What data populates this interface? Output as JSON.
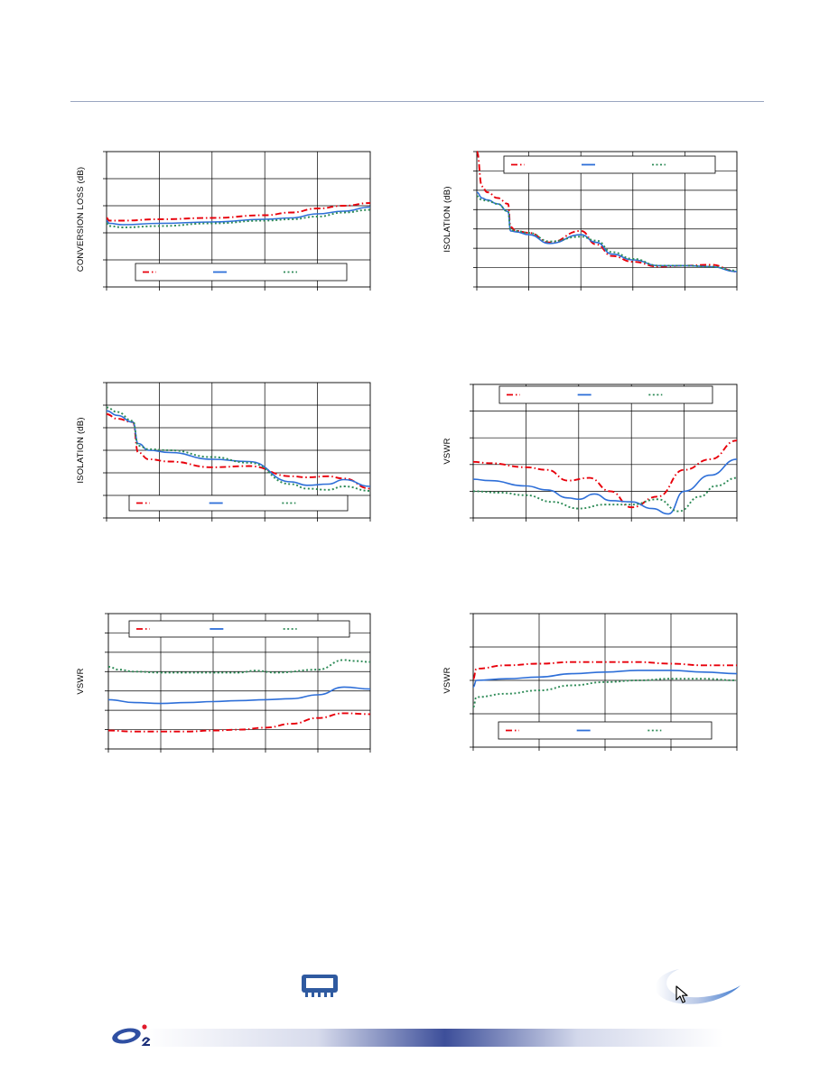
{
  "colors": {
    "series_red": "#e8000b",
    "series_blue": "#2e6fd8",
    "series_green": "#2e8b57",
    "grid": "#000000",
    "rule": "#9aa6c0",
    "footer_band": "#3d4f9a"
  },
  "icons": {
    "logo": "brand-logo-icon",
    "package": "chip-package-icon",
    "swoosh": "swoosh-logo-icon",
    "cursor": "mouse-pointer-icon"
  },
  "chart_data": [
    {
      "type": "line",
      "ylabel": "CONVERSION LOSS (dB)",
      "legend_placement": "bottom",
      "grid": true,
      "xlim": [
        0,
        5
      ],
      "ylim": [
        0,
        5
      ],
      "series": [
        {
          "color": "#e8000b",
          "dash": "dash-dot",
          "x": [
            0,
            0.05,
            0.3,
            1,
            2,
            3,
            3.5,
            4,
            4.5,
            5
          ],
          "y": [
            2.55,
            2.45,
            2.45,
            2.5,
            2.55,
            2.65,
            2.75,
            2.9,
            3.0,
            3.1
          ]
        },
        {
          "color": "#2e6fd8",
          "dash": "solid",
          "x": [
            0,
            0.05,
            0.3,
            1,
            2,
            3,
            3.5,
            4,
            4.5,
            5
          ],
          "y": [
            2.45,
            2.35,
            2.3,
            2.35,
            2.4,
            2.5,
            2.55,
            2.7,
            2.8,
            2.95
          ]
        },
        {
          "color": "#2e8b57",
          "dash": "dot",
          "x": [
            0,
            0.05,
            0.3,
            1,
            2,
            3,
            3.5,
            4,
            4.5,
            5
          ],
          "y": [
            2.35,
            2.25,
            2.2,
            2.25,
            2.35,
            2.45,
            2.5,
            2.6,
            2.75,
            2.85
          ]
        }
      ]
    },
    {
      "type": "line",
      "ylabel": "ISOLATION (dB)",
      "legend_placement": "top",
      "grid": true,
      "xlim": [
        0,
        5
      ],
      "ylim": [
        0,
        7
      ],
      "series": [
        {
          "color": "#e8000b",
          "dash": "dash-dot",
          "x": [
            0,
            0.1,
            0.2,
            0.4,
            0.6,
            0.65,
            0.75,
            1,
            1.4,
            2,
            2.3,
            2.6,
            3,
            3.5,
            4,
            4.5,
            5
          ],
          "y": [
            7.0,
            5.2,
            4.9,
            4.6,
            4.3,
            3.1,
            2.9,
            2.8,
            2.3,
            2.9,
            2.2,
            1.6,
            1.3,
            1.05,
            1.1,
            1.15,
            0.8
          ]
        },
        {
          "color": "#2e6fd8",
          "dash": "solid",
          "x": [
            0,
            0.1,
            0.2,
            0.4,
            0.6,
            0.65,
            0.75,
            1,
            1.4,
            2,
            2.3,
            2.6,
            3,
            3.5,
            4,
            4.5,
            5
          ],
          "y": [
            4.9,
            4.6,
            4.5,
            4.3,
            3.9,
            2.9,
            2.85,
            2.7,
            2.25,
            2.7,
            2.3,
            1.7,
            1.4,
            1.1,
            1.1,
            1.05,
            0.8
          ]
        },
        {
          "color": "#2e8b57",
          "dash": "dot",
          "x": [
            0,
            0.1,
            0.2,
            0.4,
            0.6,
            0.65,
            0.75,
            1,
            1.4,
            2,
            2.3,
            2.6,
            3,
            3.5,
            4,
            4.5,
            5
          ],
          "y": [
            4.7,
            4.5,
            4.45,
            4.3,
            3.9,
            2.95,
            2.9,
            2.8,
            2.35,
            2.6,
            2.4,
            1.8,
            1.45,
            1.1,
            1.1,
            1.05,
            0.85
          ]
        }
      ]
    },
    {
      "type": "line",
      "ylabel": "ISOLATION (dB)",
      "legend_placement": "bottom",
      "grid": true,
      "xlim": [
        0,
        5
      ],
      "ylim": [
        0,
        6
      ],
      "series": [
        {
          "color": "#e8000b",
          "dash": "dash-dot",
          "x": [
            0,
            0.2,
            0.5,
            0.6,
            0.8,
            1.2,
            2,
            2.7,
            3.5,
            3.8,
            4.2,
            4.5,
            5
          ],
          "y": [
            4.6,
            4.4,
            4.25,
            2.9,
            2.6,
            2.5,
            2.25,
            2.3,
            1.85,
            1.8,
            1.85,
            1.75,
            1.3
          ]
        },
        {
          "color": "#2e6fd8",
          "dash": "solid",
          "x": [
            0,
            0.2,
            0.5,
            0.6,
            0.8,
            1.2,
            2,
            2.7,
            3.5,
            3.8,
            4.2,
            4.5,
            5
          ],
          "y": [
            4.75,
            4.55,
            4.25,
            3.3,
            3.0,
            2.9,
            2.6,
            2.5,
            1.6,
            1.45,
            1.5,
            1.7,
            1.4
          ]
        },
        {
          "color": "#2e8b57",
          "dash": "dot",
          "x": [
            0,
            0.2,
            0.5,
            0.6,
            0.8,
            1.2,
            2,
            2.7,
            3.5,
            3.8,
            4.2,
            4.5,
            5
          ],
          "y": [
            4.9,
            4.7,
            4.3,
            3.2,
            3.05,
            3.0,
            2.7,
            2.45,
            1.5,
            1.3,
            1.25,
            1.4,
            1.2
          ]
        }
      ]
    },
    {
      "type": "line",
      "ylabel": "VSWR",
      "legend_placement": "top",
      "grid": true,
      "xlim": [
        0,
        5
      ],
      "ylim": [
        0,
        5
      ],
      "series": [
        {
          "color": "#e8000b",
          "dash": "dash-dot",
          "x": [
            0,
            0.3,
            1,
            1.4,
            1.8,
            2.2,
            2.6,
            3,
            3.5,
            4,
            4.5,
            5
          ],
          "y": [
            2.1,
            2.05,
            1.9,
            1.8,
            1.4,
            1.5,
            1.0,
            0.4,
            0.8,
            1.8,
            2.2,
            2.9
          ]
        },
        {
          "color": "#2e6fd8",
          "dash": "solid",
          "x": [
            0,
            0.3,
            1,
            1.4,
            1.8,
            2,
            2.3,
            2.6,
            3,
            3.4,
            3.7,
            4,
            4.5,
            5
          ],
          "y": [
            1.45,
            1.4,
            1.2,
            1.05,
            0.75,
            0.7,
            0.9,
            0.65,
            0.6,
            0.35,
            0.15,
            1.0,
            1.6,
            2.2
          ]
        },
        {
          "color": "#2e8b57",
          "dash": "dot",
          "x": [
            0,
            0.5,
            1,
            1.5,
            2,
            2.5,
            3,
            3.5,
            3.9,
            4.3,
            4.6,
            5
          ],
          "y": [
            1.0,
            0.95,
            0.85,
            0.6,
            0.35,
            0.5,
            0.5,
            0.7,
            0.25,
            0.8,
            1.2,
            1.5
          ]
        }
      ]
    },
    {
      "type": "line",
      "ylabel": "VSWR",
      "legend_placement": "top",
      "grid": true,
      "xlim": [
        0,
        5
      ],
      "ylim": [
        0,
        7
      ],
      "series": [
        {
          "color": "#e8000b",
          "dash": "dash-dot",
          "x": [
            0,
            0.5,
            1,
            1.5,
            2,
            2.5,
            3,
            3.5,
            4,
            4.5,
            5
          ],
          "y": [
            0.95,
            0.9,
            0.9,
            0.9,
            0.95,
            1.0,
            1.1,
            1.3,
            1.6,
            1.85,
            1.8
          ]
        },
        {
          "color": "#2e6fd8",
          "dash": "solid",
          "x": [
            0,
            0.5,
            1,
            1.5,
            2,
            2.5,
            3,
            3.5,
            4,
            4.5,
            5
          ],
          "y": [
            2.55,
            2.4,
            2.35,
            2.4,
            2.45,
            2.5,
            2.55,
            2.6,
            2.8,
            3.2,
            3.1
          ]
        },
        {
          "color": "#2e8b57",
          "dash": "dot",
          "x": [
            0,
            0.2,
            0.5,
            1,
            1.5,
            2,
            2.5,
            2.8,
            3.2,
            4,
            4.5,
            4.7,
            5
          ],
          "y": [
            4.25,
            4.1,
            4.0,
            3.95,
            3.95,
            3.95,
            3.95,
            4.05,
            3.95,
            4.1,
            4.6,
            4.55,
            4.5
          ]
        }
      ]
    },
    {
      "type": "line",
      "ylabel": "VSWR",
      "legend_placement": "bottom",
      "grid": true,
      "xlim": [
        0,
        4
      ],
      "ylim": [
        0,
        4
      ],
      "series": [
        {
          "color": "#e8000b",
          "dash": "dash-dot",
          "x": [
            0,
            0.05,
            0.5,
            1,
            1.5,
            2,
            2.5,
            3,
            3.5,
            4
          ],
          "y": [
            2.05,
            2.35,
            2.45,
            2.5,
            2.55,
            2.55,
            2.55,
            2.5,
            2.45,
            2.45
          ]
        },
        {
          "color": "#2e6fd8",
          "dash": "solid",
          "x": [
            0,
            0.05,
            0.5,
            1,
            1.5,
            2,
            2.5,
            3,
            3.5,
            4
          ],
          "y": [
            1.8,
            2.0,
            2.05,
            2.1,
            2.2,
            2.25,
            2.3,
            2.3,
            2.25,
            2.2
          ]
        },
        {
          "color": "#2e8b57",
          "dash": "dot",
          "x": [
            0,
            0.05,
            0.5,
            1,
            1.5,
            2,
            2.5,
            3,
            3.5,
            4
          ],
          "y": [
            1.2,
            1.5,
            1.6,
            1.7,
            1.85,
            1.95,
            2.0,
            2.05,
            2.05,
            2.0
          ]
        }
      ]
    }
  ]
}
